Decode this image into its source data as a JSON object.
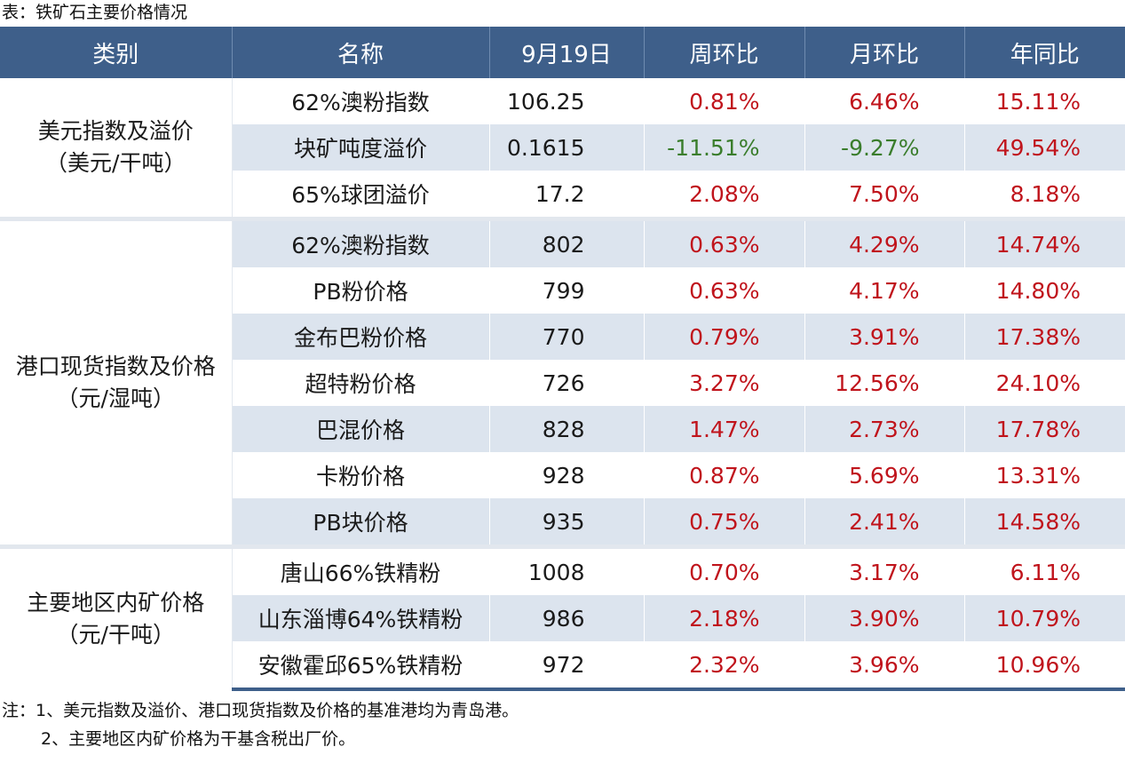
{
  "caption": "表：铁矿石主要价格情况",
  "headers": [
    "类别",
    "名称",
    "9月19日",
    "周环比",
    "月环比",
    "年同比"
  ],
  "groups": [
    {
      "category_lines": [
        "美元指数及溢价",
        "（美元/干吨）"
      ],
      "rows": [
        {
          "name": "62%澳粉指数",
          "value": "106.25",
          "wow": "0.81%",
          "mom": "6.46%",
          "yoy": "15.11%"
        },
        {
          "name": "块矿吨度溢价",
          "value": "0.1615",
          "wow": "-11.51%",
          "mom": "-9.27%",
          "yoy": "49.54%"
        },
        {
          "name": "65%球团溢价",
          "value": "17.2",
          "wow": "2.08%",
          "mom": "7.50%",
          "yoy": "8.18%"
        }
      ]
    },
    {
      "category_lines": [
        "港口现货指数及价格",
        "（元/湿吨）"
      ],
      "rows": [
        {
          "name": "62%澳粉指数",
          "value": "802",
          "wow": "0.63%",
          "mom": "4.29%",
          "yoy": "14.74%"
        },
        {
          "name": "PB粉价格",
          "value": "799",
          "wow": "0.63%",
          "mom": "4.17%",
          "yoy": "14.80%"
        },
        {
          "name": "金布巴粉价格",
          "value": "770",
          "wow": "0.79%",
          "mom": "3.91%",
          "yoy": "17.38%"
        },
        {
          "name": "超特粉价格",
          "value": "726",
          "wow": "3.27%",
          "mom": "12.56%",
          "yoy": "24.10%"
        },
        {
          "name": "巴混价格",
          "value": "828",
          "wow": "1.47%",
          "mom": "2.73%",
          "yoy": "17.78%"
        },
        {
          "name": "卡粉价格",
          "value": "928",
          "wow": "0.87%",
          "mom": "5.69%",
          "yoy": "13.31%"
        },
        {
          "name": "PB块价格",
          "value": "935",
          "wow": "0.75%",
          "mom": "2.41%",
          "yoy": "14.58%"
        }
      ]
    },
    {
      "category_lines": [
        "主要地区内矿价格",
        "（元/干吨）"
      ],
      "rows": [
        {
          "name": "唐山66%铁精粉",
          "value": "1008",
          "wow": "0.70%",
          "mom": "3.17%",
          "yoy": "6.11%"
        },
        {
          "name": "山东淄博64%铁精粉",
          "value": "986",
          "wow": "2.18%",
          "mom": "3.90%",
          "yoy": "10.79%"
        },
        {
          "name": "安徽霍邱65%铁精粉",
          "value": "972",
          "wow": "2.32%",
          "mom": "3.96%",
          "yoy": "10.96%"
        }
      ]
    }
  ],
  "notes": [
    "注：1、美元指数及溢价、港口现货指数及价格的基准港均为青岛港。",
    "2、主要地区内矿价格为干基含税出厂价。"
  ],
  "colors": {
    "header_bg": "#3e5f8a",
    "row_shade": "#dce4ee",
    "positive": "#c0141c",
    "negative": "#3a7d2c"
  }
}
